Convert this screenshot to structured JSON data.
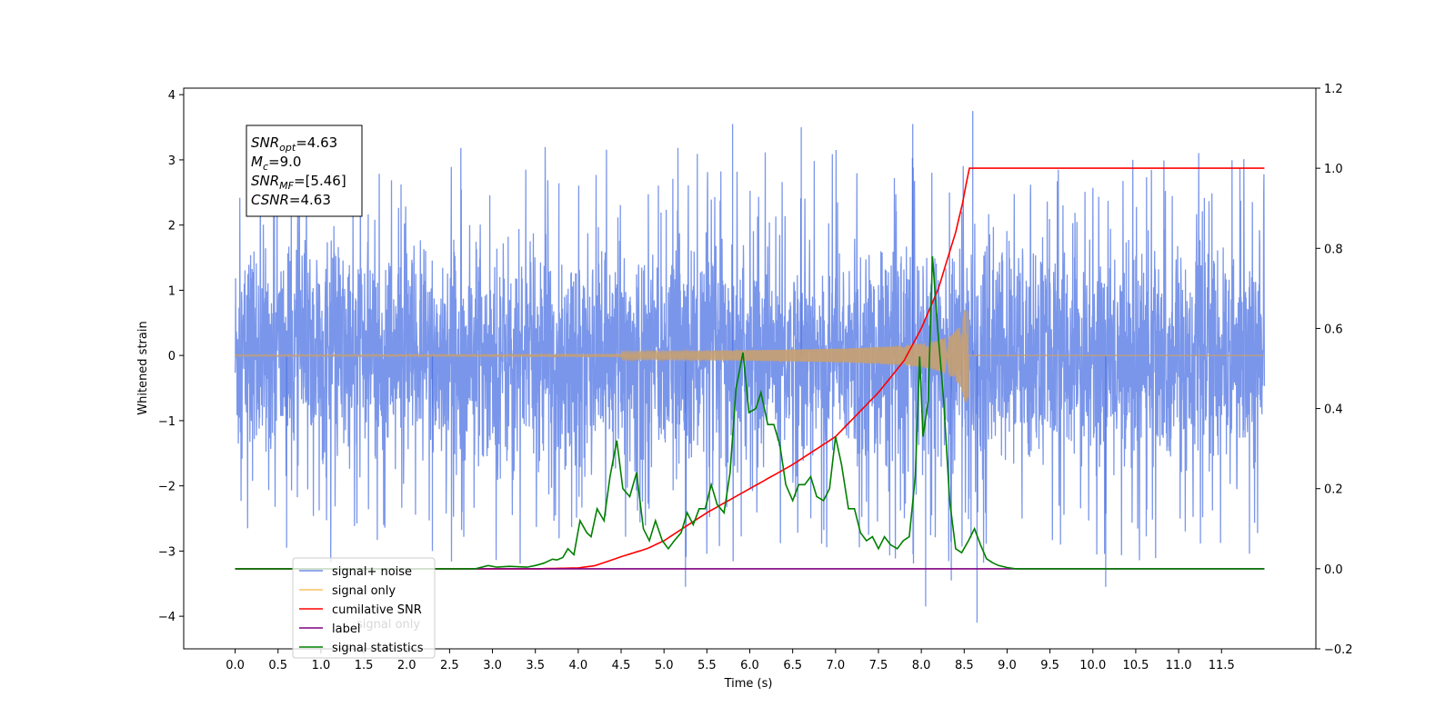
{
  "chart_data": {
    "type": "line",
    "title": "",
    "xlabel": "Time (s)",
    "ylabel": "Whitened strain",
    "y2label": "",
    "xlim": [
      -0.6,
      12.6
    ],
    "ylim": [
      -4.5,
      4.1
    ],
    "y2lim": [
      -0.2,
      1.2
    ],
    "x_ticks": [
      "0.0",
      "0.5",
      "1.0",
      "1.5",
      "2.0",
      "2.5",
      "3.0",
      "3.5",
      "4.0",
      "4.5",
      "5.0",
      "5.5",
      "6.0",
      "6.5",
      "7.0",
      "7.5",
      "8.0",
      "8.5",
      "9.0",
      "9.5",
      "10.0",
      "10.5",
      "11.0",
      "11.5"
    ],
    "y_ticks": [
      "4",
      "3",
      "2",
      "1",
      "0",
      "−1",
      "−2",
      "−3",
      "−4"
    ],
    "y2_ticks": [
      "1.2",
      "1.0",
      "0.8",
      "0.6",
      "0.4",
      "0.2",
      "0.0",
      "−0.2"
    ],
    "grid": false,
    "legend_position": "lower-left",
    "series": [
      {
        "name": "signal+ noise",
        "axis": "left",
        "color": "#4169e1",
        "kind": "noise",
        "x_range": [
          0.0,
          12.0
        ],
        "envelope_min": -2.2,
        "envelope_max": 2.2,
        "outliers": [
          {
            "x": 5.25,
            "y": -3.55
          },
          {
            "x": 5.8,
            "y": 3.55
          },
          {
            "x": 8.05,
            "y": -3.85
          },
          {
            "x": 8.35,
            "y": -3.45
          },
          {
            "x": 8.6,
            "y": 3.75
          },
          {
            "x": 8.65,
            "y": -4.1
          },
          {
            "x": 10.15,
            "y": -3.55
          },
          {
            "x": 0.6,
            "y": -2.95
          },
          {
            "x": 2.3,
            "y": -3.0
          },
          {
            "x": 7.9,
            "y": 3.55
          },
          {
            "x": 6.6,
            "y": 3.5
          }
        ]
      },
      {
        "name": "signal only",
        "axis": "left",
        "color": "#c8a070",
        "kind": "chirp",
        "x_range": [
          0.0,
          12.0
        ],
        "merger_time": 8.55,
        "peak_amplitude": 0.7
      },
      {
        "name": "cumilative SNR",
        "axis": "right",
        "color": "#ff0000",
        "x": [
          0.0,
          3.5,
          4.0,
          4.2,
          4.5,
          4.8,
          5.0,
          5.5,
          6.0,
          6.5,
          7.0,
          7.5,
          7.8,
          8.0,
          8.2,
          8.4,
          8.5,
          8.55,
          9.0,
          10.0,
          11.0,
          12.0
        ],
        "y": [
          0.0,
          0.0,
          0.002,
          0.008,
          0.03,
          0.05,
          0.07,
          0.14,
          0.2,
          0.26,
          0.33,
          0.44,
          0.52,
          0.6,
          0.7,
          0.84,
          0.93,
          1.0,
          1.0,
          1.0,
          1.0,
          1.0
        ]
      },
      {
        "name": "label",
        "axis": "right",
        "color": "#800080",
        "x": [
          0.0,
          12.0
        ],
        "y": [
          0.0,
          0.0
        ]
      },
      {
        "name": "signal statistics",
        "axis": "right",
        "color": "#008000",
        "x": [
          0.0,
          2.8,
          2.95,
          3.05,
          3.2,
          3.4,
          3.5,
          3.6,
          3.7,
          3.75,
          3.82,
          3.88,
          3.95,
          4.02,
          4.1,
          4.15,
          4.22,
          4.3,
          4.37,
          4.45,
          4.52,
          4.6,
          4.68,
          4.76,
          4.83,
          4.9,
          4.98,
          5.05,
          5.12,
          5.2,
          5.27,
          5.34,
          5.41,
          5.48,
          5.55,
          5.62,
          5.7,
          5.77,
          5.84,
          5.92,
          5.99,
          6.07,
          6.13,
          6.21,
          6.28,
          6.35,
          6.42,
          6.5,
          6.57,
          6.64,
          6.71,
          6.78,
          6.86,
          6.93,
          7.0,
          7.07,
          7.15,
          7.22,
          7.29,
          7.36,
          7.43,
          7.5,
          7.57,
          7.64,
          7.72,
          7.79,
          7.86,
          7.93,
          7.98,
          8.02,
          8.08,
          8.13,
          8.19,
          8.26,
          8.33,
          8.4,
          8.47,
          8.55,
          8.62,
          8.69,
          8.76,
          8.83,
          8.9,
          9.0,
          9.1,
          9.5,
          12.0
        ],
        "y": [
          0.0,
          0.0,
          0.008,
          0.004,
          0.006,
          0.004,
          0.008,
          0.014,
          0.024,
          0.022,
          0.028,
          0.05,
          0.035,
          0.12,
          0.09,
          0.08,
          0.15,
          0.12,
          0.23,
          0.32,
          0.2,
          0.18,
          0.24,
          0.1,
          0.07,
          0.12,
          0.07,
          0.05,
          0.07,
          0.09,
          0.14,
          0.11,
          0.15,
          0.15,
          0.21,
          0.16,
          0.14,
          0.24,
          0.45,
          0.54,
          0.39,
          0.4,
          0.44,
          0.36,
          0.36,
          0.31,
          0.21,
          0.17,
          0.21,
          0.21,
          0.23,
          0.18,
          0.17,
          0.2,
          0.33,
          0.26,
          0.15,
          0.15,
          0.09,
          0.07,
          0.08,
          0.05,
          0.08,
          0.06,
          0.05,
          0.07,
          0.08,
          0.23,
          0.53,
          0.33,
          0.42,
          0.78,
          0.6,
          0.42,
          0.17,
          0.05,
          0.04,
          0.07,
          0.1,
          0.06,
          0.025,
          0.015,
          0.008,
          0.003,
          0.0,
          0.0,
          0.0
        ]
      }
    ],
    "annotation_lines": [
      {
        "label": "SNR",
        "sub": "opt",
        "value": "=4.63"
      },
      {
        "label": "M",
        "sub": "c",
        "value": "=9.0"
      },
      {
        "label": "SNR",
        "sub": "MF",
        "value": "=[5.46]"
      },
      {
        "label": "CSNR",
        "sub": "",
        "value": "=4.63"
      }
    ],
    "legend_ghost_text": "signal only"
  }
}
